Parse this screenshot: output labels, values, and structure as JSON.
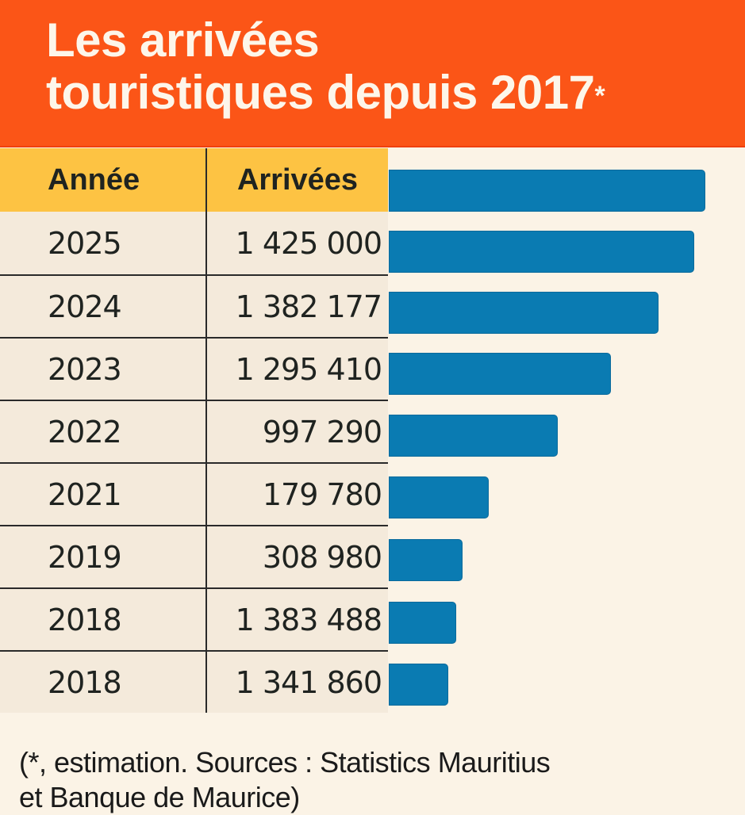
{
  "header": {
    "title_line1": "Les arrivées",
    "title_line2": "touristiques depuis 2017",
    "title_asterisk": "*"
  },
  "colors": {
    "header_bg": "#fb5517",
    "table_header_bg": "#fdc343",
    "row_bg": "#f4eadb",
    "page_bg": "#fbf3e6",
    "bar": "#0a7bb2"
  },
  "table": {
    "columns": [
      "Année",
      "Arrivées"
    ],
    "rows": [
      {
        "year": "2025",
        "arrivals": "1 425 000"
      },
      {
        "year": "2024",
        "arrivals": "1 382 177"
      },
      {
        "year": "2023",
        "arrivals": "1 295 410"
      },
      {
        "year": "2022",
        "arrivals": "997 290"
      },
      {
        "year": "2021",
        "arrivals": "179 780"
      },
      {
        "year": "2019",
        "arrivals": "308 980"
      },
      {
        "year": "2018",
        "arrivals": "1 383 488"
      },
      {
        "year": "2018",
        "arrivals": "1 341 860"
      }
    ]
  },
  "chart_data": {
    "type": "bar",
    "orientation": "horizontal",
    "title": "Les arrivées touristiques depuis 2017*",
    "xlabel": "",
    "ylabel": "",
    "categories": [
      "(header)",
      "2025",
      "2024",
      "2023",
      "2022",
      "2021",
      "2019",
      "2018",
      "2018"
    ],
    "table_values": [
      null,
      1425000,
      1382177,
      1295410,
      997290,
      179780,
      308980,
      1383488,
      1341860
    ],
    "bar_fill_fraction": [
      1.0,
      0.965,
      0.852,
      0.702,
      0.534,
      0.316,
      0.233,
      0.213,
      0.188
    ],
    "grid": false,
    "legend": "none"
  },
  "footnote": {
    "line1": "(*, estimation. Sources : Statistics Mauritius",
    "line2": "et Banque de Maurice)"
  }
}
